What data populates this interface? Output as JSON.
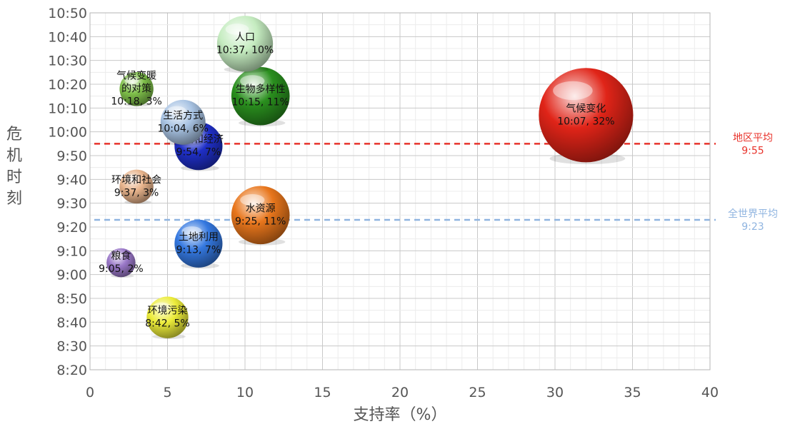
{
  "chart_data": {
    "type": "scatter",
    "subtype": "bubble",
    "title": "",
    "xlabel": "支持率（%）",
    "ylabel": "危机时刻",
    "xlim": [
      0,
      40
    ],
    "x_ticks": [
      0,
      5,
      10,
      15,
      20,
      25,
      30,
      35,
      40
    ],
    "ylim": [
      "8:20",
      "10:50"
    ],
    "y_ticks": [
      "8:20",
      "8:30",
      "8:40",
      "8:50",
      "9:00",
      "9:10",
      "9:20",
      "9:30",
      "9:40",
      "9:50",
      "10:00",
      "10:10",
      "10:20",
      "10:30",
      "10:40",
      "10:50"
    ],
    "grid": true,
    "points": [
      {
        "name": "气候变化",
        "x": 32,
        "y": "10:07",
        "value_label": "10:07, 32%",
        "color": "#e02418"
      },
      {
        "name": "人口",
        "x": 10,
        "y": "10:37",
        "value_label": "10:37, 10%",
        "color": "#c5ecc0"
      },
      {
        "name": "生物多样性",
        "x": 11,
        "y": "10:15",
        "value_label": "10:15, 11%",
        "color": "#2a8f1e"
      },
      {
        "name": "气候变暖的对策",
        "name_lines": [
          "气候变暖",
          "的对策"
        ],
        "x": 3,
        "y": "10:18",
        "value_label": "10:18, 3%",
        "color": "#7fc04a"
      },
      {
        "name": "生活方式",
        "x": 6,
        "y": "10:04",
        "value_label": "10:04, 6%",
        "color": "#a8c3e3"
      },
      {
        "name": "环境和经济",
        "x": 7,
        "y": "9:54",
        "value_label": "9:54, 7%",
        "color": "#1f2fc8"
      },
      {
        "name": "环境和社会",
        "x": 3,
        "y": "9:37",
        "value_label": "9:37, 3%",
        "color": "#e8b48c"
      },
      {
        "name": "水资源",
        "x": 11,
        "y": "9:25",
        "value_label": "9:25, 11%",
        "color": "#e8761c"
      },
      {
        "name": "土地利用",
        "x": 7,
        "y": "9:13",
        "value_label": "9:13, 7%",
        "color": "#3478e0"
      },
      {
        "name": "粮食",
        "x": 2,
        "y": "9:05",
        "value_label": "9:05, 2%",
        "color": "#9a78c8"
      },
      {
        "name": "环境污染",
        "x": 5,
        "y": "8:42",
        "value_label": "8:42, 5%",
        "color": "#ecec3a"
      }
    ],
    "reference_lines": [
      {
        "label": "地区平均",
        "value_label": "9:55",
        "y": "9:55",
        "color": "#e8322a"
      },
      {
        "label": "全世界平均",
        "value_label": "9:23",
        "y": "9:23",
        "color": "#8fb4e0"
      }
    ]
  }
}
